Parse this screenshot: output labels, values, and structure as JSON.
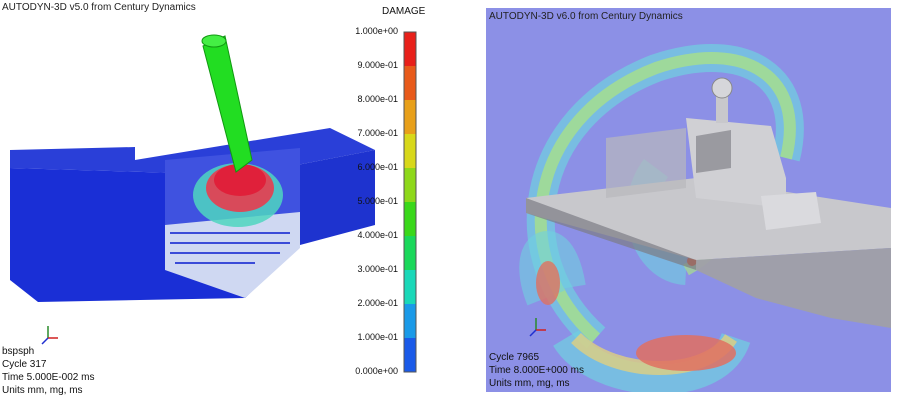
{
  "left": {
    "title": "AUTODYN-3D v5.0 from Century Dynamics",
    "model_name": "bspsph",
    "cycle": "Cycle 317",
    "time": "Time 5.000E-002 ms",
    "units": "Units mm, mg, ms",
    "legend": {
      "title": "DAMAGE",
      "ticks": [
        "1.000e+00",
        "9.000e-01",
        "8.000e-01",
        "7.000e-01",
        "6.000e-01",
        "5.000e-01",
        "4.000e-01",
        "3.000e-01",
        "2.000e-01",
        "1.000e-01",
        "0.000e+00"
      ],
      "colors": [
        "#e8201a",
        "#e85a1a",
        "#e8a01a",
        "#d8d81a",
        "#8ed81a",
        "#3ad81a",
        "#1ad85a",
        "#1ad8b8",
        "#1a9ae8",
        "#1a5ae8"
      ]
    }
  },
  "right": {
    "title": "AUTODYN-3D v6.0 from Century Dynamics",
    "cycle": "Cycle 7965",
    "time": "Time 8.000E+000 ms",
    "units": "Units mm, mg, ms"
  }
}
